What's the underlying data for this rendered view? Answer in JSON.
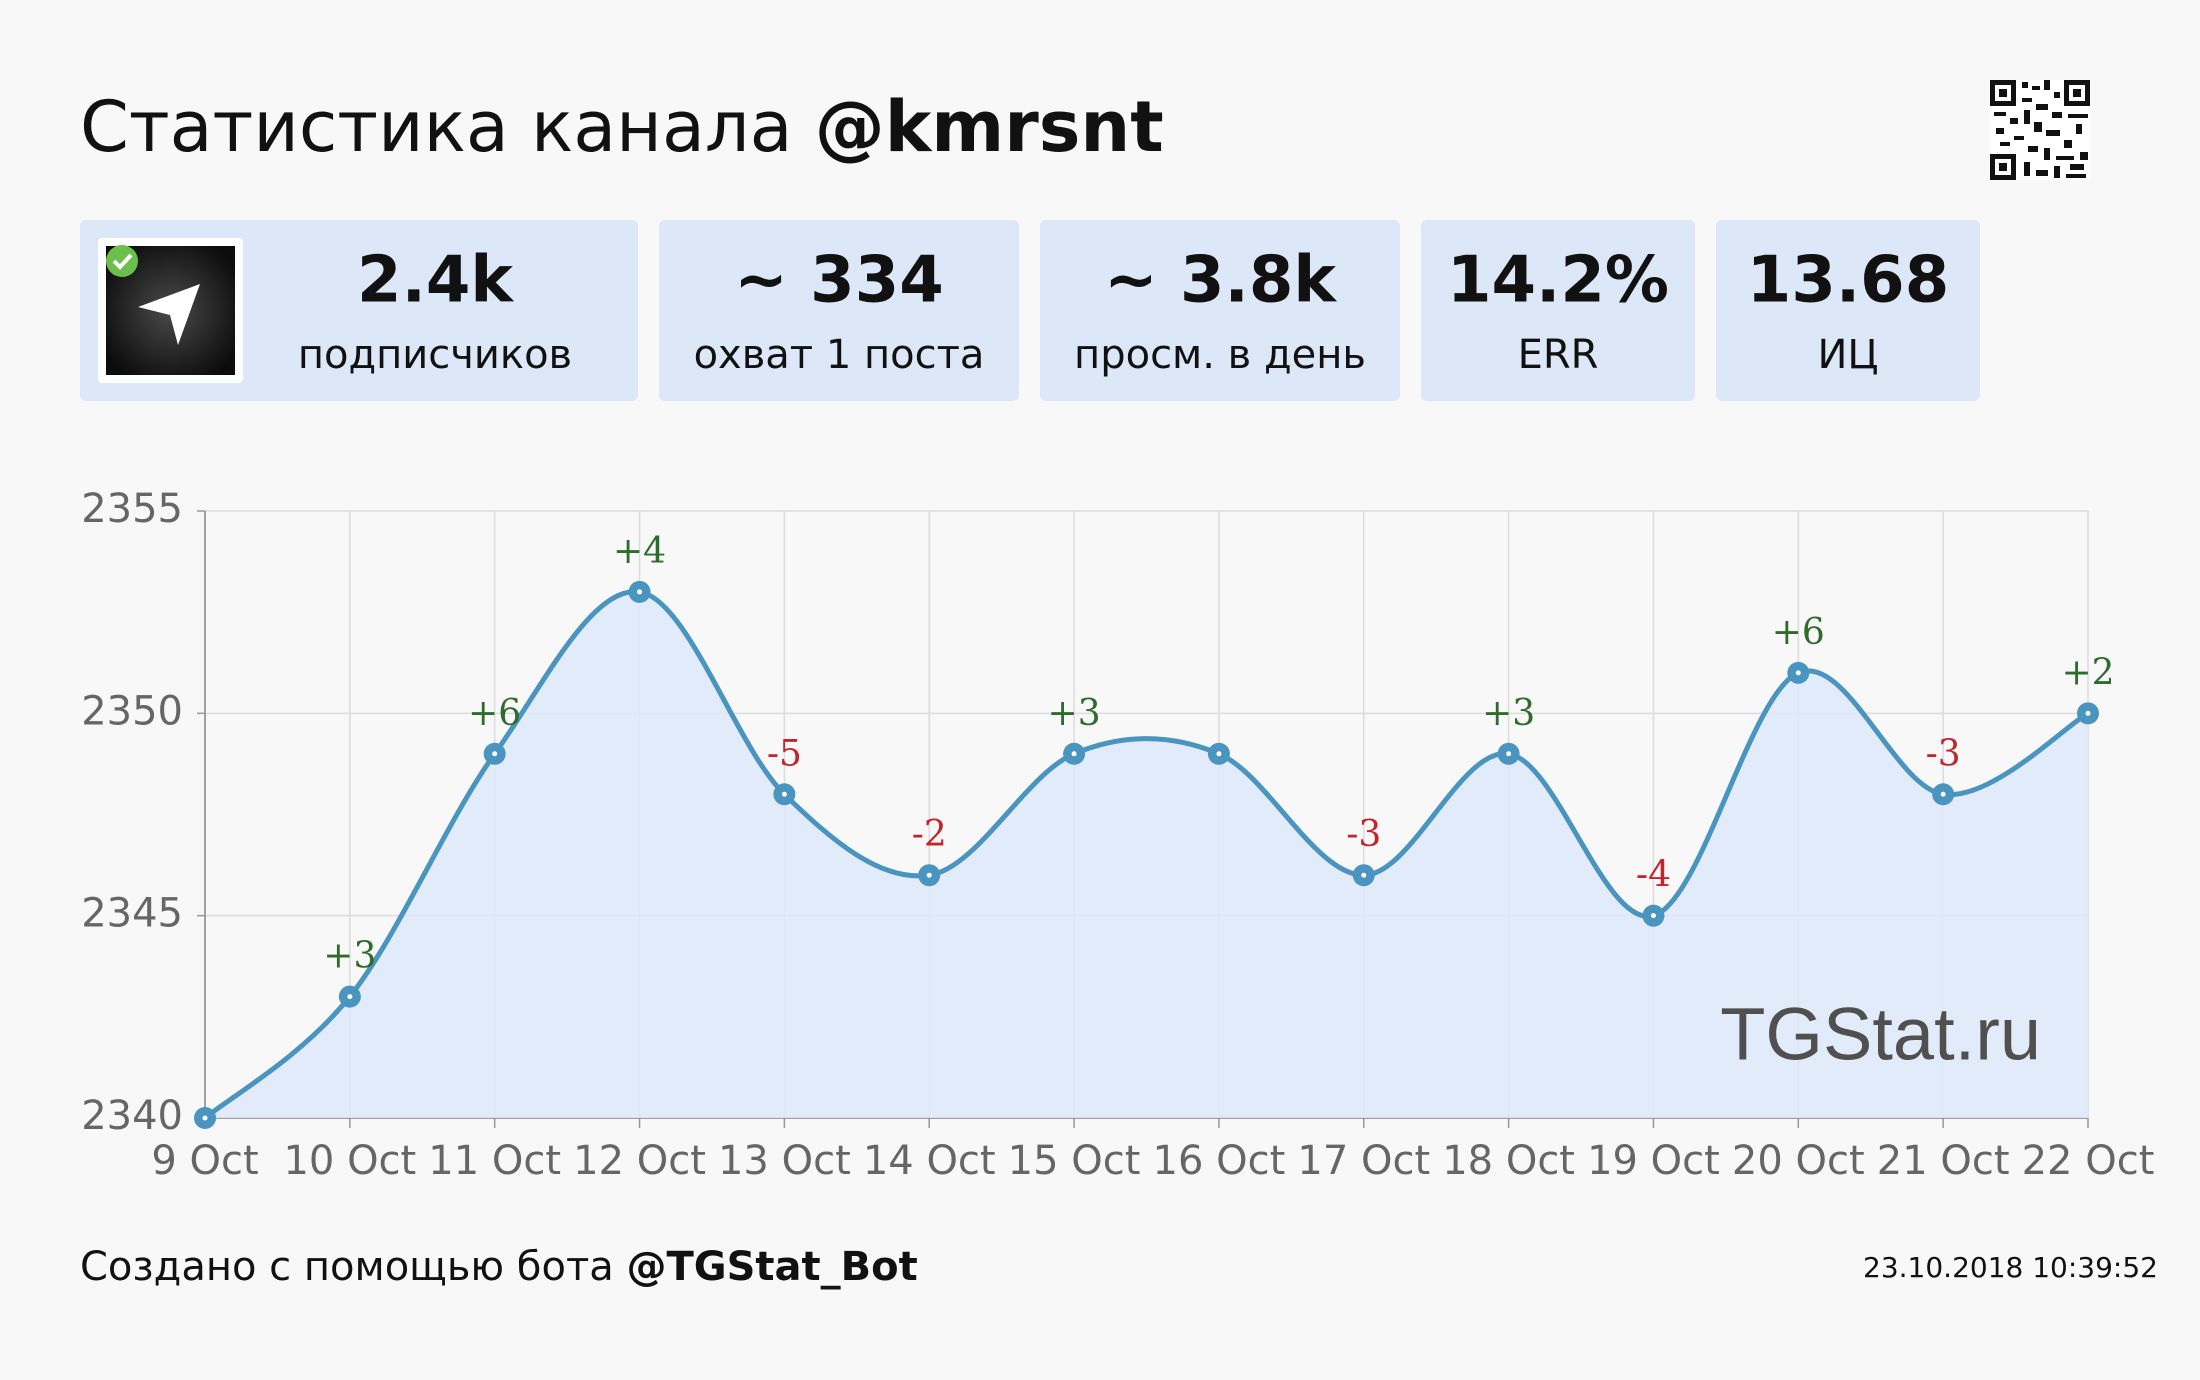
{
  "header": {
    "title": "Статистика канала",
    "channel": "@kmrsnt"
  },
  "stats": [
    {
      "value": "2.4k",
      "label": "подписчиков"
    },
    {
      "value": "~ 334",
      "label": "охват 1 поста"
    },
    {
      "value": "~ 3.8k",
      "label": "просм. в день"
    },
    {
      "value": "14.2%",
      "label": "ERR"
    },
    {
      "value": "13.68",
      "label": "ИЦ"
    }
  ],
  "chart_data": {
    "type": "line",
    "categories": [
      "9 Oct",
      "10 Oct",
      "11 Oct",
      "12 Oct",
      "13 Oct",
      "14 Oct",
      "15 Oct",
      "16 Oct",
      "17 Oct",
      "18 Oct",
      "19 Oct",
      "20 Oct",
      "21 Oct",
      "22 Oct"
    ],
    "values": [
      2340,
      2343,
      2349,
      2353,
      2348,
      2346,
      2349,
      2349,
      2346,
      2349,
      2345,
      2351,
      2348,
      2350
    ],
    "changes": [
      null,
      3,
      6,
      4,
      -5,
      -2,
      3,
      null,
      -3,
      3,
      -4,
      6,
      -3,
      2
    ],
    "change_labels": [
      null,
      "+3",
      "+6",
      "+4",
      "-5",
      "-2",
      "+3",
      null,
      "-3",
      "+3",
      "-4",
      "+6",
      "-3",
      "+2"
    ],
    "color": "#4a94c0",
    "area_color": "#dde9f9",
    "positive_color": "#2f6b2c",
    "negative_color": "#c0262b",
    "ylim": [
      2340,
      2355
    ],
    "yticks": [
      2340,
      2345,
      2350,
      2355
    ],
    "grid": true
  },
  "watermark": "TGStat.ru",
  "footer": {
    "text": "Создано с помощью бота",
    "bot": "@TGStat_Bot",
    "timestamp": "23.10.2018 10:39:52"
  }
}
